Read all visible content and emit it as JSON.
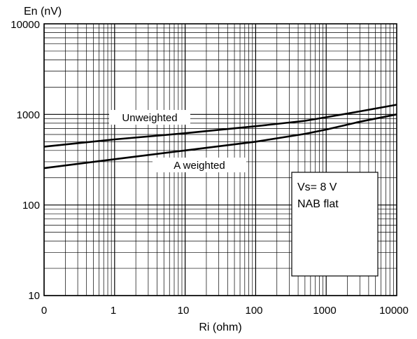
{
  "chart_data": {
    "type": "line",
    "title": "",
    "xlabel": "Ri (ohm)",
    "ylabel": "En (nV)",
    "x_scale": "log",
    "y_scale": "log",
    "xlim": [
      1,
      10000
    ],
    "ylim": [
      10,
      10000
    ],
    "grid": true,
    "x_tick_labels": [
      "0",
      "1",
      "10",
      "100",
      "1000",
      "10000"
    ],
    "y_tick_labels": [
      "10",
      "100",
      "1000",
      "10000"
    ],
    "series": [
      {
        "name": "Unweighted",
        "x": [
          0.1,
          1,
          10,
          100,
          500,
          1000,
          3000,
          10000
        ],
        "y": [
          440,
          530,
          620,
          740,
          850,
          930,
          1080,
          1280
        ]
      },
      {
        "name": "A weighted",
        "x": [
          0.1,
          1,
          10,
          100,
          500,
          1000,
          3000,
          10000
        ],
        "y": [
          255,
          320,
          400,
          500,
          610,
          680,
          830,
          1000
        ]
      }
    ],
    "annotation": {
      "lines": [
        "Vs= 8 V",
        "NAB flat"
      ]
    }
  }
}
